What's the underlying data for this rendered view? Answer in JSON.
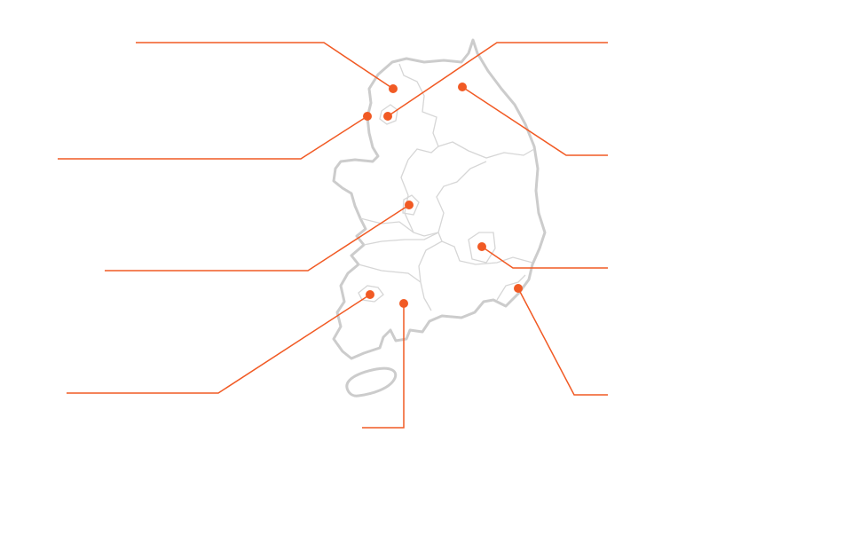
{
  "map": {
    "region": "South Korea",
    "colors": {
      "coastline": "#cccccc",
      "province_border": "#d6d6d6",
      "marker": "#f15a24",
      "callout_line": "#f15a24",
      "background": "#ffffff"
    },
    "marker_icon": "circle-dot",
    "callout_count": 9
  }
}
